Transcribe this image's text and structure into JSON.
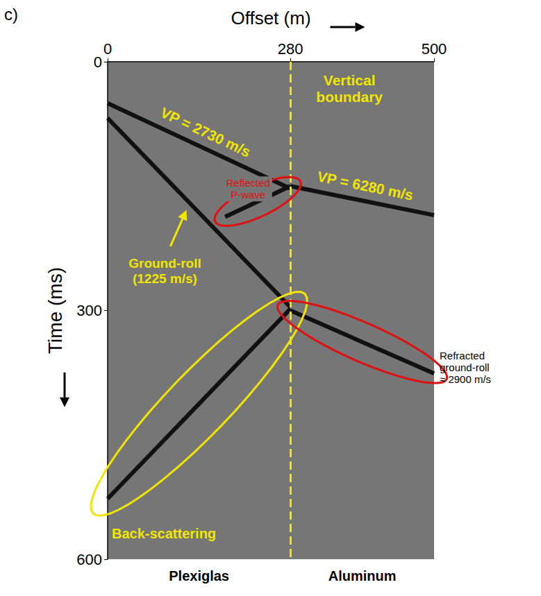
{
  "chart_data": {
    "type": "line",
    "panel": "c)",
    "x_label": "Offset (m)",
    "y_label": "Time (ms)",
    "xlim": [
      0,
      500
    ],
    "xticks": [
      0,
      280,
      500
    ],
    "ylim": [
      0,
      600
    ],
    "yticks": [
      0,
      300,
      600
    ],
    "grid": false,
    "boundary": {
      "x": 280,
      "label": "Vertical boundary"
    },
    "regions": [
      "Plexiglas",
      "Aluminum"
    ],
    "series": [
      {
        "name": "VP = 2730 m/s",
        "color": "#f2e600",
        "x": [
          0,
          280
        ],
        "values": [
          50,
          153
        ]
      },
      {
        "name": "VP = 6280 m/s",
        "color": "#f2e600",
        "x": [
          280,
          500
        ],
        "values": [
          150,
          185
        ]
      },
      {
        "name": "Ground-roll (1225 m/s)",
        "color": "#f2e600",
        "x": [
          0,
          280
        ],
        "values": [
          68,
          296
        ]
      },
      {
        "name": "Reflected P-wave",
        "color": "#e01010",
        "x": [
          280,
          180
        ],
        "values": [
          150,
          187
        ]
      },
      {
        "name": "Back-scattering",
        "color": "#f2e600",
        "x": [
          280,
          0
        ],
        "values": [
          298,
          527
        ]
      },
      {
        "name": "Refracted ground-roll ≈ 2900 m/s",
        "color": "#e01010",
        "x": [
          280,
          500
        ],
        "values": [
          300,
          376
        ]
      }
    ]
  }
}
